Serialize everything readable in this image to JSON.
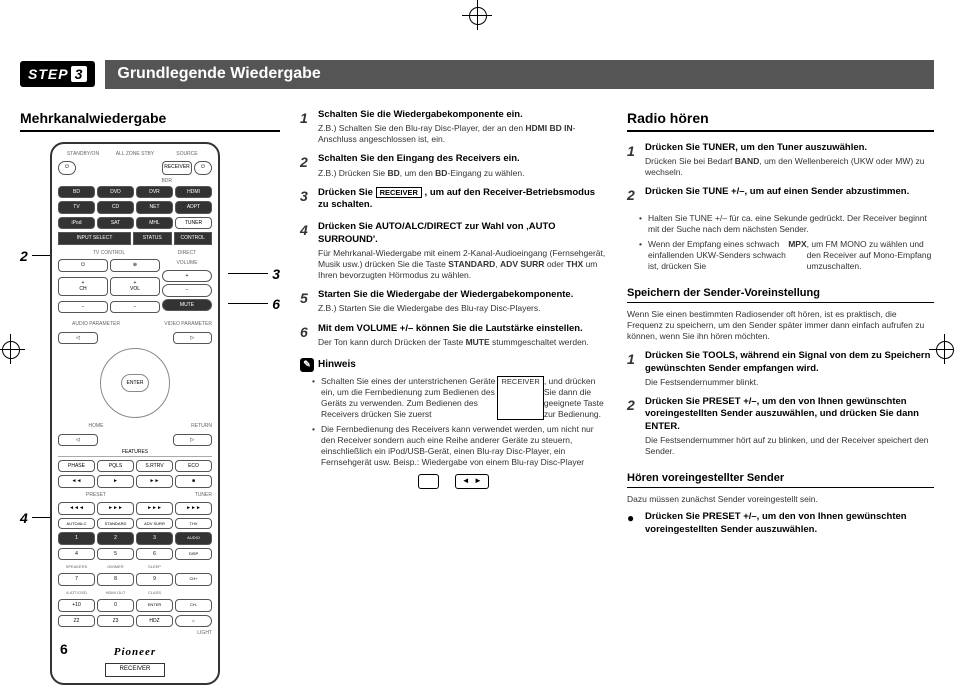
{
  "header": {
    "step_label": "STEP",
    "step_num": "3",
    "title": "Grundlegende Wiedergabe"
  },
  "col1": {
    "title": "Mehrkanalwiedergabe",
    "callouts": [
      "2",
      "3",
      "6",
      "4"
    ],
    "remote": {
      "top_labels": [
        "STANDBY/ON",
        "ALL ZONE STBY",
        "SOURCE"
      ],
      "sub_label": "RECEIVER",
      "bdr": "BDR",
      "row1": [
        "BD",
        "DVD",
        "DVR",
        "HDMI"
      ],
      "row2": [
        "TV",
        "CD",
        "NET",
        "ADPT"
      ],
      "row3": [
        "iPod",
        "SAT",
        "MHL",
        "TUNER"
      ],
      "row4": [
        "INPUT SELECT",
        "STATUS",
        "CONTROL"
      ],
      "tv_ctrl": "TV CONTROL",
      "direct_label": "DIRECT",
      "volume_label": "VOLUME",
      "ch_label": "CH",
      "vol_label": "VOL",
      "mute_label": "MUTE",
      "audio_param": "AUDIO PARAMETER",
      "video_param": "VIDEO PARAMETER",
      "home": "HOME",
      "return": "RETURN",
      "enter": "ENTER",
      "features": "FEATURES",
      "frow1": [
        "PHASE",
        "PQLS",
        "S.RTRV",
        "ECO"
      ],
      "frow2": [
        "◄◄",
        "►",
        "►►",
        "■"
      ],
      "trow1": [
        "◄◄◄",
        "►►►",
        "►►►",
        "►►►"
      ],
      "preset": "PRESET",
      "tuner": "TUNER",
      "mode_row": [
        "AUTO/ALC",
        "STANDARD",
        "ADV SURR",
        "THX"
      ],
      "mode_nums": [
        "1",
        "2",
        "3",
        "AUDIO"
      ],
      "nrow1": [
        "4",
        "5",
        "6",
        "DISP"
      ],
      "speakers": "SPEAKERS",
      "dimmer": "DIMMER",
      "sleep": "SLEEP",
      "nrow2": [
        "7",
        "8",
        "9",
        "CH+"
      ],
      "hdmi_labels": [
        "A.ATT/OSD",
        "HDMI OUT",
        "CLASS",
        "CH-"
      ],
      "nrow3": [
        "+10",
        "0",
        "ENTER",
        "CH-"
      ],
      "brow": [
        "Z2",
        "Z3",
        "HDZ",
        ""
      ],
      "light": "LIGHT",
      "logo": "Pioneer",
      "receiver_box": "RECEIVER"
    }
  },
  "col2": {
    "steps": [
      {
        "n": "1",
        "h": "Schalten Sie die Wiedergabekomponente ein.",
        "d": "Z.B.) Schalten Sie den Blu-ray Disc-Player, der an den HDMI BD IN-Anschluss angeschlossen ist, ein."
      },
      {
        "n": "2",
        "h": "Schalten Sie den Eingang des Receivers ein.",
        "d": "Z.B.) Drücken Sie BD, um den BD-Eingang zu wählen."
      },
      {
        "n": "3",
        "h": "Drücken Sie RECEIVER , um auf den Receiver-Betriebsmodus zu schalten.",
        "d": ""
      },
      {
        "n": "4",
        "h": "Drücken Sie AUTO/ALC/DIRECT zur Wahl von ‚AUTO SURROUND'.",
        "d": "Für Mehrkanal-Wiedergabe mit einem 2-Kanal-Audioeingang (Fernsehgerät, Musik usw.) drücken Sie die Taste STANDARD, ADV SURR oder THX um Ihren bevorzugten Hörmodus zu wählen."
      },
      {
        "n": "5",
        "h": "Starten Sie die Wiedergabe der Wiedergabekomponente.",
        "d": "Z.B.) Starten Sie die Wiedergabe des Blu-ray Disc-Players."
      },
      {
        "n": "6",
        "h": "Mit dem VOLUME +/– können Sie die Lautstärke einstellen.",
        "d": "Der Ton kann durch Drücken der Taste MUTE stummgeschaltet werden."
      }
    ],
    "note_title": "Hinweis",
    "notes": [
      "Schalten Sie eines der unterstrichenen Geräte ein, um die Fernbedienung zum Bedienen des Geräts zu verwenden. Zum Bedienen des Receivers drücken Sie zuerst RECEIVER, und drücken Sie dann die geeignete Taste zur Bedienung.",
      "Die Fernbedienung des Receivers kann verwendet werden, um nicht nur den Receiver sondern auch eine Reihe anderer Geräte zu steuern, einschließlich ein iPod/USB-Gerät, einen Blu-ray Disc-Player, ein Fernsehgerät usw. Beisp.: Wiedergabe von einem Blu-ray Disc-Player"
    ]
  },
  "col3": {
    "title": "Radio hören",
    "steps": [
      {
        "n": "1",
        "h": "Drücken Sie TUNER, um den Tuner auszuwählen.",
        "d": "Drücken Sie bei Bedarf BAND, um den Wellenbereich (UKW oder MW) zu wechseln."
      },
      {
        "n": "2",
        "h": "Drücken Sie TUNE +/–, um auf einen Sender abzustimmen.",
        "d": ""
      }
    ],
    "step2_bullets": [
      "Halten Sie TUNE +/– für ca. eine Sekunde gedrückt. Der Receiver beginnt mit der Suche nach dem nächsten Sender.",
      "Wenn der Empfang eines schwach einfallenden UKW-Senders schwach ist, drücken Sie MPX, um FM MONO zu wählen und den Receiver auf Mono-Empfang umzuschalten."
    ],
    "sub1_title": "Speichern der Sender-Voreinstellung",
    "sub1_intro": "Wenn Sie einen bestimmten Radiosender oft hören, ist es praktisch, die Frequenz zu speichern, um den Sender später immer dann einfach aufrufen zu können, wenn Sie ihn hören möchten.",
    "sub1_steps": [
      {
        "n": "1",
        "h": "Drücken Sie TOOLS, während ein Signal von dem zu Speichern gewünschten Sender empfangen wird.",
        "d": "Die Festsendernummer blinkt."
      },
      {
        "n": "2",
        "h": "Drücken Sie PRESET +/–, um den von Ihnen gewünschten voreingestellten Sender auszuwählen, und drücken Sie dann ENTER.",
        "d": "Die Festsendernummer hört auf zu blinken, und der Receiver speichert den Sender."
      }
    ],
    "sub2_title": "Hören voreingestellter Sender",
    "sub2_intro": "Dazu müssen zunächst Sender voreingestellt sein.",
    "sub2_step": "Drücken Sie PRESET +/–, um den von Ihnen gewünschten voreingestellten Sender auszuwählen."
  },
  "page_num": "6"
}
